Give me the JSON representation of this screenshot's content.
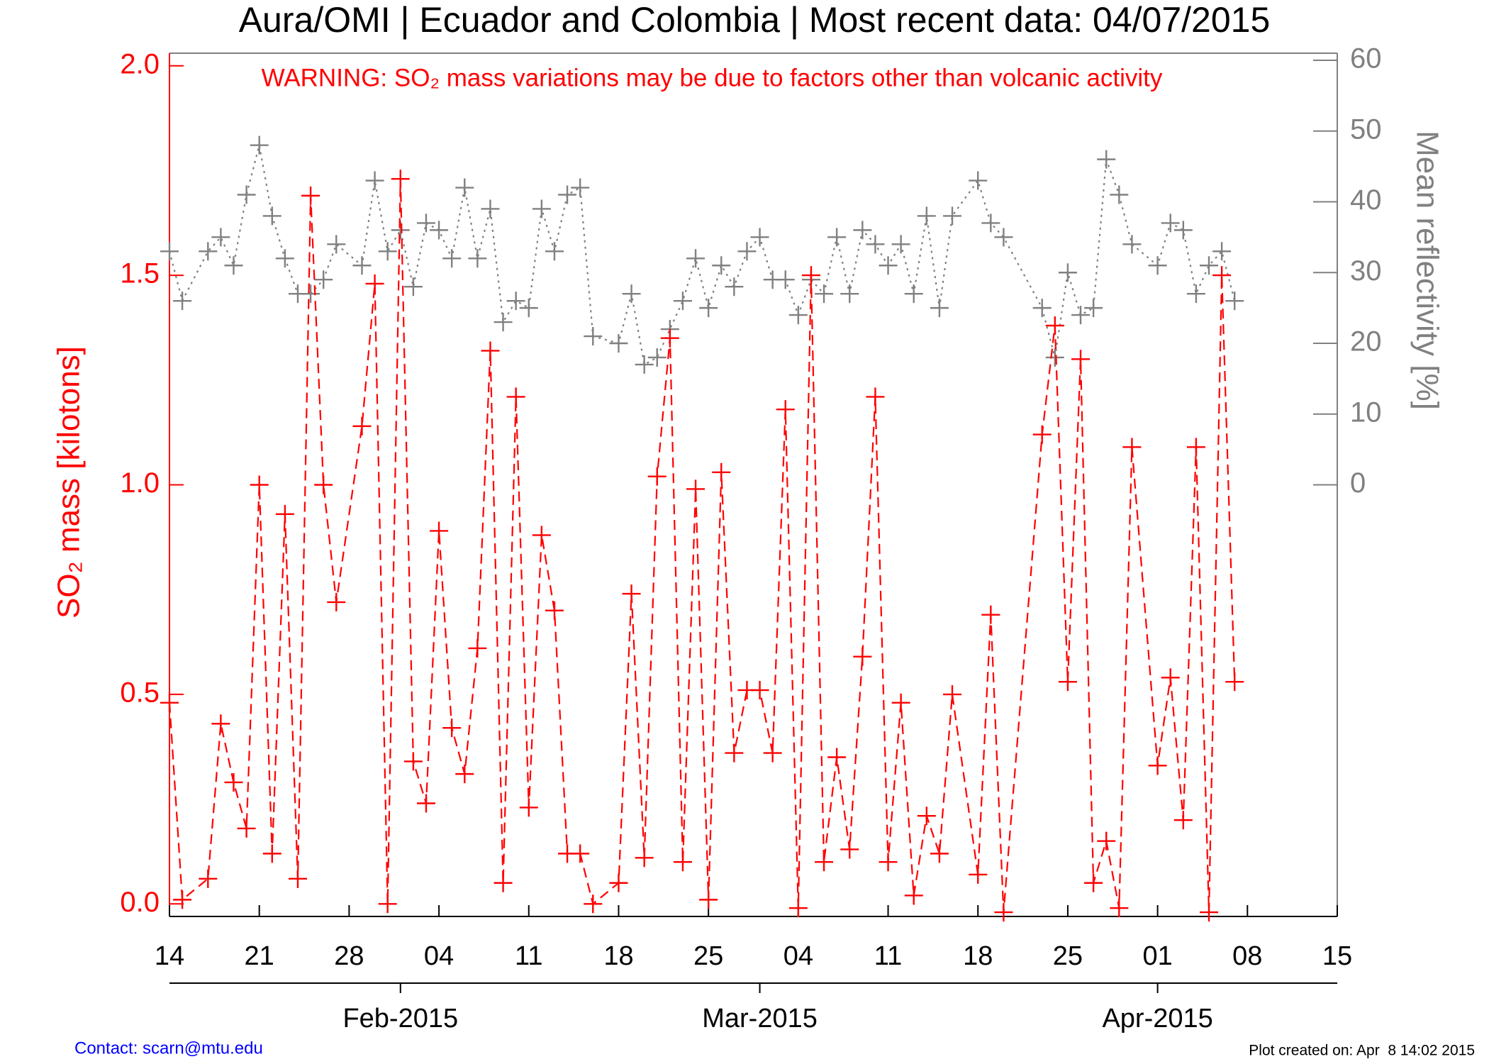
{
  "chart_data": {
    "type": "line",
    "title": "Aura/OMI | Ecuador and Colombia | Most recent data: 04/07/2015",
    "annotation": "WARNING: SO₂ mass variations may be due to factors other than volcanic activity",
    "ylabel": "SO₂ mass [kilotons]",
    "y2label": "Mean reflectivity [%]",
    "xlim": [
      "2015-01-14",
      "2015-04-15"
    ],
    "xticks": [
      {
        "value": "2015-01-14",
        "label": "14"
      },
      {
        "value": "2015-01-21",
        "label": "21"
      },
      {
        "value": "2015-01-28",
        "label": "28"
      },
      {
        "value": "2015-02-04",
        "label": "04"
      },
      {
        "value": "2015-02-11",
        "label": "11"
      },
      {
        "value": "2015-02-18",
        "label": "18"
      },
      {
        "value": "2015-02-25",
        "label": "25"
      },
      {
        "value": "2015-03-04",
        "label": "04"
      },
      {
        "value": "2015-03-11",
        "label": "11"
      },
      {
        "value": "2015-03-18",
        "label": "18"
      },
      {
        "value": "2015-03-25",
        "label": "25"
      },
      {
        "value": "2015-04-01",
        "label": "01"
      },
      {
        "value": "2015-04-08",
        "label": "08"
      },
      {
        "value": "2015-04-15",
        "label": "15"
      }
    ],
    "month_ticks": [
      {
        "value": "2015-02-01",
        "label": "Feb-2015"
      },
      {
        "value": "2015-03-01",
        "label": "Mar-2015"
      },
      {
        "value": "2015-04-01",
        "label": "Apr-2015"
      }
    ],
    "ylim": [
      -0.03,
      2.03
    ],
    "yticks": [
      {
        "value": 0,
        "label": "0.0"
      },
      {
        "value": 0.5,
        "label": "0.5"
      },
      {
        "value": 1,
        "label": "1.0"
      },
      {
        "value": 1.5,
        "label": "1.5"
      },
      {
        "value": 2,
        "label": "2.0"
      }
    ],
    "y2lim": [
      -61,
      61
    ],
    "y2ticks": [
      0,
      10,
      20,
      30,
      40,
      50,
      60
    ],
    "x": [
      "2015-01-14",
      "2015-01-15",
      "2015-01-17",
      "2015-01-18",
      "2015-01-19",
      "2015-01-20",
      "2015-01-21",
      "2015-01-22",
      "2015-01-23",
      "2015-01-24",
      "2015-01-25",
      "2015-01-26",
      "2015-01-27",
      "2015-01-29",
      "2015-01-30",
      "2015-01-31",
      "2015-02-01",
      "2015-02-02",
      "2015-02-03",
      "2015-02-04",
      "2015-02-05",
      "2015-02-06",
      "2015-02-07",
      "2015-02-08",
      "2015-02-09",
      "2015-02-10",
      "2015-02-11",
      "2015-02-12",
      "2015-02-13",
      "2015-02-14",
      "2015-02-15",
      "2015-02-16",
      "2015-02-18",
      "2015-02-19",
      "2015-02-20",
      "2015-02-21",
      "2015-02-22",
      "2015-02-23",
      "2015-02-24",
      "2015-02-25",
      "2015-02-26",
      "2015-02-27",
      "2015-02-28",
      "2015-03-01",
      "2015-03-02",
      "2015-03-03",
      "2015-03-04",
      "2015-03-05",
      "2015-03-06",
      "2015-03-07",
      "2015-03-08",
      "2015-03-09",
      "2015-03-10",
      "2015-03-11",
      "2015-03-12",
      "2015-03-13",
      "2015-03-14",
      "2015-03-15",
      "2015-03-16",
      "2015-03-18",
      "2015-03-19",
      "2015-03-20",
      "2015-03-23",
      "2015-03-24",
      "2015-03-25",
      "2015-03-26",
      "2015-03-27",
      "2015-03-28",
      "2015-03-29",
      "2015-03-30",
      "2015-04-01",
      "2015-04-02",
      "2015-04-03",
      "2015-04-04",
      "2015-04-05",
      "2015-04-06",
      "2015-04-07"
    ],
    "series": [
      {
        "color": "#ff0000",
        "dash": "dashed",
        "values": [
          0.48,
          0.01,
          0.06,
          0.43,
          0.29,
          0.18,
          1.0,
          0.12,
          0.93,
          0.06,
          1.69,
          1.0,
          0.72,
          1.14,
          1.48,
          0.0,
          1.73,
          0.34,
          0.24,
          0.89,
          0.42,
          0.31,
          0.61,
          1.32,
          0.05,
          1.21,
          0.23,
          0.88,
          0.7,
          0.12,
          0.12,
          0.0,
          0.05,
          0.74,
          0.11,
          1.02,
          1.35,
          0.1,
          0.99,
          0.01,
          1.03,
          0.36,
          0.51,
          0.51,
          0.36,
          1.18,
          -0.01,
          1.5,
          0.1,
          0.35,
          0.13,
          0.59,
          1.21,
          0.1,
          0.48,
          0.02,
          0.21,
          0.12,
          0.5,
          0.07,
          0.69,
          -0.02,
          1.12,
          1.38,
          0.53,
          1.3,
          0.05,
          0.15,
          -0.01,
          1.09,
          0.33,
          0.54,
          0.2,
          1.09,
          -0.02,
          1.5,
          0.53
        ]
      },
      {
        "color": "#808080",
        "dash": "dotted",
        "axis": "y2",
        "values": [
          33,
          26,
          33,
          35,
          31,
          41,
          48,
          38,
          32,
          27,
          27,
          29,
          34,
          31,
          43,
          33,
          36,
          28,
          37,
          36,
          32,
          42,
          32,
          39,
          23,
          26,
          25,
          39,
          33,
          41,
          42,
          21,
          20,
          27,
          17,
          18,
          22,
          26,
          32,
          25,
          31,
          28,
          33,
          35,
          29,
          29,
          24,
          29,
          27,
          35,
          27,
          36,
          34,
          31,
          34,
          27,
          38,
          25,
          38,
          43,
          37,
          35,
          25,
          18,
          30,
          24,
          25,
          46,
          41,
          34,
          31,
          37,
          36,
          27,
          31,
          33,
          26
        ]
      }
    ]
  },
  "contact": "Contact: scarn@mtu.edu",
  "plot_created": "Plot created on: Apr  8 14:02 2015"
}
